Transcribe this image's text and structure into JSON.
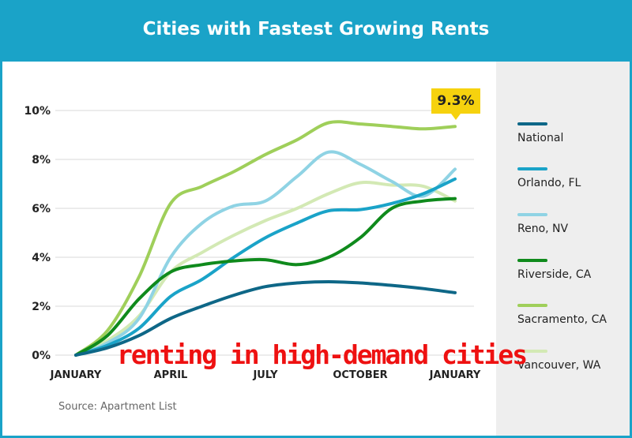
{
  "header": {
    "title": "Cities with Fastest Growing Rents"
  },
  "source": "Source: Apartment List",
  "overlay_text": "renting in high-demand cities",
  "callout": {
    "label": "9.3%",
    "series": "Sacramento, CA"
  },
  "colors": {
    "header_bg": "#1aa3c8",
    "panel_bg": "#ffffff",
    "legend_bg": "#eeeeee",
    "callout_bg": "#f6d20e",
    "overlay_text": "#ee1111"
  },
  "chart_data": {
    "type": "line",
    "title": "Cities with Fastest Growing Rents",
    "xlabel": "",
    "ylabel": "",
    "xlim": [
      0,
      12
    ],
    "ylim": [
      0,
      10
    ],
    "x_ticks": [
      {
        "value": 0,
        "label": "JANUARY"
      },
      {
        "value": 3,
        "label": "APRIL"
      },
      {
        "value": 6,
        "label": "JULY"
      },
      {
        "value": 9,
        "label": "OCTOBER"
      },
      {
        "value": 12,
        "label": "JANUARY"
      }
    ],
    "y_ticks": [
      {
        "value": 0,
        "label": "0%"
      },
      {
        "value": 2,
        "label": "2%"
      },
      {
        "value": 4,
        "label": "4%"
      },
      {
        "value": 6,
        "label": "6%"
      },
      {
        "value": 8,
        "label": "8%"
      },
      {
        "value": 10,
        "label": "10%"
      }
    ],
    "grid": true,
    "legend_position": "right",
    "series": [
      {
        "name": "National",
        "color": "#0e6787",
        "x": [
          0,
          1,
          2,
          3,
          4,
          5,
          6,
          7,
          8,
          9,
          10,
          11,
          12
        ],
        "values": [
          0,
          0.3,
          0.8,
          1.5,
          2.0,
          2.45,
          2.8,
          2.95,
          3.0,
          2.95,
          2.85,
          2.72,
          2.55
        ]
      },
      {
        "name": "Orlando, FL",
        "color": "#1aa3c8",
        "x": [
          0,
          1,
          2,
          3,
          4,
          5,
          6,
          7,
          8,
          9,
          10,
          11,
          12
        ],
        "values": [
          0,
          0.4,
          1.1,
          2.4,
          3.1,
          4.0,
          4.8,
          5.4,
          5.9,
          5.95,
          6.2,
          6.6,
          7.2
        ]
      },
      {
        "name": "Reno, NV",
        "color": "#8fd3e4",
        "x": [
          0,
          1,
          2,
          3,
          4,
          5,
          6,
          7,
          8,
          9,
          10,
          11,
          12
        ],
        "values": [
          0,
          0.5,
          1.5,
          4.0,
          5.4,
          6.1,
          6.3,
          7.3,
          8.3,
          7.8,
          7.1,
          6.5,
          7.6
        ]
      },
      {
        "name": "Riverside, CA",
        "color": "#0f8a1c",
        "x": [
          0,
          1,
          2,
          3,
          4,
          5,
          6,
          7,
          8,
          9,
          10,
          11,
          12
        ],
        "values": [
          0,
          0.8,
          2.3,
          3.4,
          3.7,
          3.85,
          3.9,
          3.7,
          4.0,
          4.8,
          6.0,
          6.3,
          6.4
        ]
      },
      {
        "name": "Sacramento, CA",
        "color": "#9fcf5a",
        "x": [
          0,
          1,
          2,
          3,
          4,
          5,
          6,
          7,
          8,
          9,
          10,
          11,
          12
        ],
        "values": [
          0,
          1.0,
          3.2,
          6.2,
          6.9,
          7.5,
          8.2,
          8.8,
          9.5,
          9.45,
          9.35,
          9.25,
          9.35
        ]
      },
      {
        "name": "Vancouver, WA",
        "color": "#d3e9b4",
        "x": [
          0,
          1,
          2,
          3,
          4,
          5,
          6,
          7,
          8,
          9,
          10,
          11,
          12
        ],
        "values": [
          0,
          0.6,
          1.6,
          3.4,
          4.2,
          4.9,
          5.5,
          6.0,
          6.6,
          7.05,
          6.95,
          6.9,
          6.3
        ]
      }
    ]
  }
}
